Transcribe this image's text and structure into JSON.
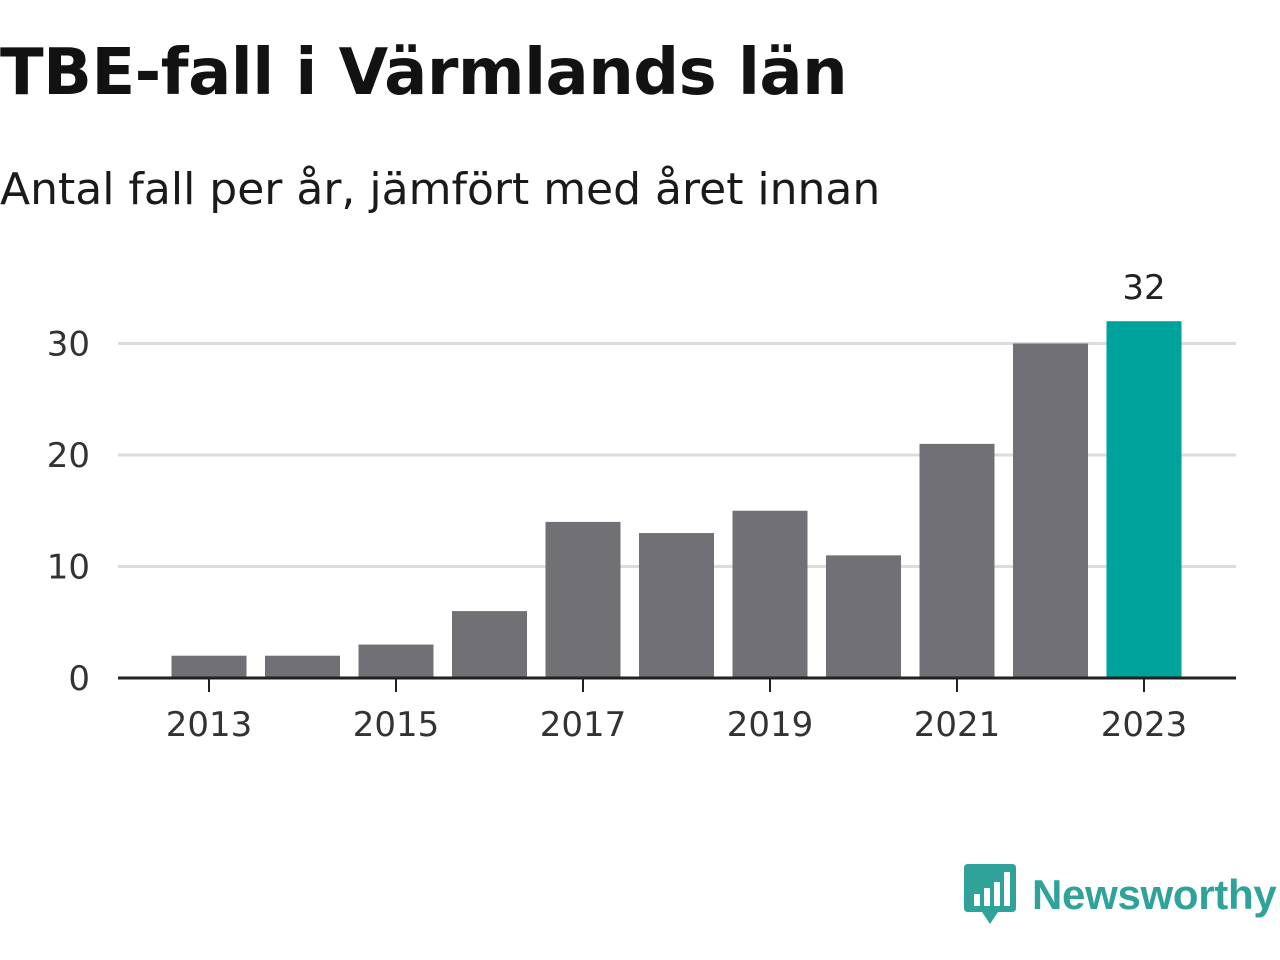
{
  "colors": {
    "bar": "#707075",
    "highlight": "#00a39b",
    "grid": "#dcdcdc",
    "axis": "#222222",
    "text": "#333333",
    "brand": "#2fa39a"
  },
  "brand": {
    "name": "Newsworthy",
    "logo_icon": "bar-chart-speech-bubble-icon"
  },
  "chart_data": {
    "type": "bar",
    "title": "TBE-fall i Värmlands län",
    "subtitle": "Antal fall per år, jämfört med året innan",
    "xlabel": "",
    "ylabel": "",
    "categories": [
      "2013",
      "2014",
      "2015",
      "2016",
      "2017",
      "2018",
      "2019",
      "2020",
      "2021",
      "2022",
      "2023"
    ],
    "values": [
      2,
      2,
      3,
      6,
      14,
      13,
      15,
      11,
      21,
      30,
      32
    ],
    "highlight_index": 10,
    "data_labels": [
      {
        "index": 10,
        "text": "32"
      }
    ],
    "x_tick_labels": [
      "2013",
      "2015",
      "2017",
      "2019",
      "2021",
      "2023"
    ],
    "y_ticks": [
      0,
      10,
      20,
      30
    ],
    "ylim": [
      0,
      32
    ],
    "grid": true,
    "legend": "none"
  }
}
